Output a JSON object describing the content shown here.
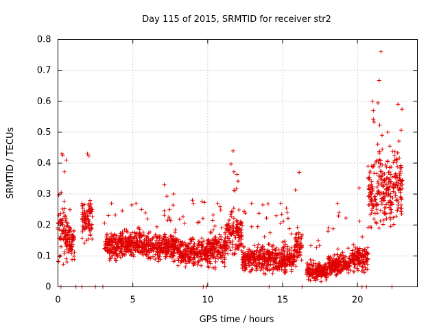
{
  "chart_data": {
    "type": "scatter",
    "title": "Day 115 of 2015, SRMTID for receiver str2",
    "xlabel": "GPS time / hours",
    "ylabel": "SRMTID / TECUs",
    "xlim": [
      0,
      24
    ],
    "ylim": [
      0,
      0.8
    ],
    "xticks": [
      "0",
      "5",
      "10",
      "15",
      "20"
    ],
    "xtick_values": [
      0,
      5,
      10,
      15,
      20
    ],
    "yticks": [
      "0",
      "0.1",
      "0.2",
      "0.3",
      "0.4",
      "0.5",
      "0.6",
      "0.7",
      "0.8"
    ],
    "ytick_values": [
      0,
      0.1,
      0.2,
      0.3,
      0.4,
      0.5,
      0.6,
      0.7,
      0.8
    ],
    "grid": true,
    "marker": "+",
    "marker_color": "#e00000",
    "series": [
      {
        "name": "SRMTID",
        "segments": [
          {
            "x_start": 0.0,
            "x_end": 0.55,
            "base": 0.17,
            "spread": 0.12,
            "peak": 0.43
          },
          {
            "x_start": 0.55,
            "x_end": 1.1,
            "base": 0.15,
            "spread": 0.09,
            "peak": 0.25
          },
          {
            "x_start": 1.6,
            "x_end": 2.3,
            "base": 0.22,
            "spread": 0.1,
            "peak": 0.43
          },
          {
            "x_start": 3.1,
            "x_end": 4.0,
            "base": 0.13,
            "spread": 0.07,
            "peak": 0.27
          },
          {
            "x_start": 4.0,
            "x_end": 6.0,
            "base": 0.14,
            "spread": 0.06,
            "peak": 0.27
          },
          {
            "x_start": 6.0,
            "x_end": 8.0,
            "base": 0.13,
            "spread": 0.06,
            "peak": 0.33
          },
          {
            "x_start": 8.0,
            "x_end": 10.0,
            "base": 0.11,
            "spread": 0.06,
            "peak": 0.28
          },
          {
            "x_start": 10.0,
            "x_end": 11.2,
            "base": 0.12,
            "spread": 0.07,
            "peak": 0.27
          },
          {
            "x_start": 11.2,
            "x_end": 12.3,
            "base": 0.17,
            "spread": 0.09,
            "peak": 0.44
          },
          {
            "x_start": 12.3,
            "x_end": 14.0,
            "base": 0.09,
            "spread": 0.06,
            "peak": 0.27
          },
          {
            "x_start": 14.0,
            "x_end": 15.8,
            "base": 0.09,
            "spread": 0.06,
            "peak": 0.27
          },
          {
            "x_start": 15.8,
            "x_end": 16.3,
            "base": 0.13,
            "spread": 0.08,
            "peak": 0.37
          },
          {
            "x_start": 16.6,
            "x_end": 18.0,
            "base": 0.05,
            "spread": 0.04,
            "peak": 0.15
          },
          {
            "x_start": 18.0,
            "x_end": 19.5,
            "base": 0.07,
            "spread": 0.05,
            "peak": 0.27
          },
          {
            "x_start": 19.5,
            "x_end": 20.7,
            "base": 0.09,
            "spread": 0.06,
            "peak": 0.32
          },
          {
            "x_start": 20.7,
            "x_end": 21.3,
            "base": 0.3,
            "spread": 0.15,
            "peak": 0.6
          },
          {
            "x_start": 21.3,
            "x_end": 21.7,
            "base": 0.35,
            "spread": 0.2,
            "peak": 0.76
          },
          {
            "x_start": 21.7,
            "x_end": 22.4,
            "base": 0.3,
            "spread": 0.15,
            "peak": 0.5
          },
          {
            "x_start": 22.4,
            "x_end": 23.0,
            "base": 0.32,
            "spread": 0.15,
            "peak": 0.59
          }
        ],
        "zero_points_x": [
          0.2,
          1.2,
          1.6,
          2.5,
          3.0,
          9.7,
          9.9,
          14.1,
          16.3,
          20.3,
          20.6,
          22.3
        ]
      }
    ]
  }
}
